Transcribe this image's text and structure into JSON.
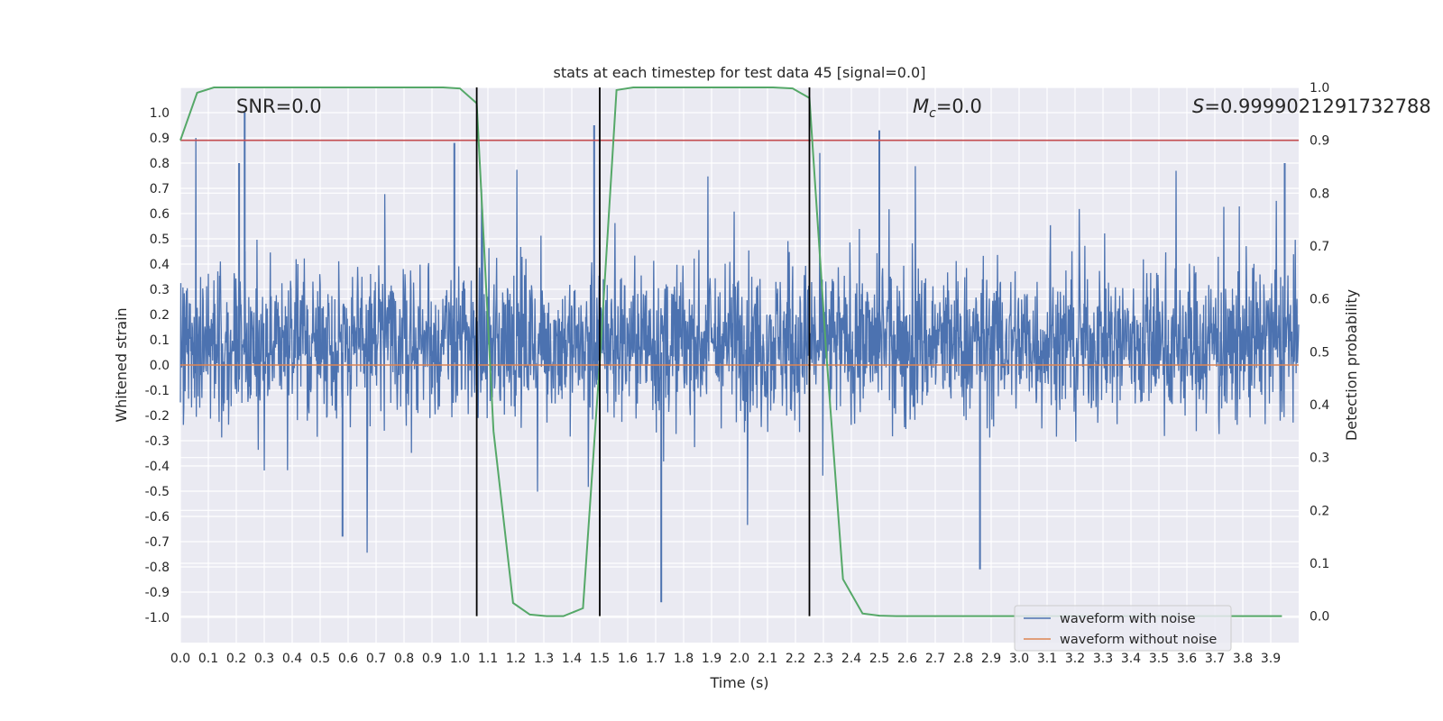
{
  "chart_data": {
    "type": "line",
    "title": "stats at each timestep for test data 45 [signal=0.0]",
    "xlabel": "Time (s)",
    "ylabel": "Whitened strain",
    "y2label": "Detection probability",
    "xlim": [
      0.0,
      4.0
    ],
    "ylim": [
      -1.1,
      1.1
    ],
    "y2lim": [
      -0.05,
      1.0
    ],
    "x_ticks": [
      0.0,
      0.1,
      0.2,
      0.3,
      0.4,
      0.5,
      0.6,
      0.7,
      0.8,
      0.9,
      1.0,
      1.1,
      1.2,
      1.3,
      1.4,
      1.5,
      1.6,
      1.7,
      1.8,
      1.9,
      2.0,
      2.1,
      2.2,
      2.3,
      2.4,
      2.5,
      2.6,
      2.7,
      2.8,
      2.9,
      3.0,
      3.1,
      3.2,
      3.3,
      3.4,
      3.5,
      3.6,
      3.7,
      3.8,
      3.9
    ],
    "y_ticks": [
      1.0,
      0.9,
      0.8,
      0.7,
      0.6,
      0.5,
      0.4,
      0.3,
      0.2,
      0.1,
      0.0,
      -0.1,
      -0.2,
      -0.3,
      -0.4,
      -0.5,
      -0.6,
      -0.7,
      -0.8,
      -0.9,
      -1.0
    ],
    "y2_ticks": [
      0.0,
      0.1,
      0.2,
      0.3,
      0.4,
      0.5,
      0.6,
      0.7,
      0.8,
      0.9,
      1.0
    ],
    "grid": true,
    "legend_position": "lower-right",
    "annotations": {
      "snr": "SNR=0.0",
      "mc_symbol": "M",
      "mc_sub": "c",
      "mc_value": "=0.0",
      "s_symbol": "S",
      "s_value": "=0.9999021291732788"
    },
    "series": [
      {
        "name": "waveform with noise",
        "color": "#4c72b0",
        "axis": "left",
        "note_shape": "dense noise band roughly within [-0.8, 1.0], spikes near 0.23 s (1.0), 1.48 s (0.95), 2.5 s (0.93), 3.95 s (0.8)",
        "spikes": [
          [
            0.23,
            1.0
          ],
          [
            0.21,
            0.8
          ],
          [
            0.98,
            0.88
          ],
          [
            1.48,
            0.95
          ],
          [
            2.5,
            0.93
          ],
          [
            3.95,
            0.8
          ],
          [
            1.72,
            -0.94
          ],
          [
            2.86,
            -0.81
          ],
          [
            1.5,
            -0.72
          ],
          [
            0.58,
            -0.68
          ]
        ]
      },
      {
        "name": "waveform without noise",
        "color": "#dd8452",
        "axis": "left",
        "x": [
          0.0,
          4.0
        ],
        "y": [
          0.0,
          0.0
        ]
      },
      {
        "name": "detection probability",
        "color": "#55a868",
        "axis": "right",
        "x": [
          0.0,
          0.06,
          0.12,
          0.19,
          0.25,
          0.31,
          0.37,
          0.44,
          0.5,
          0.56,
          0.62,
          0.69,
          0.75,
          0.81,
          0.87,
          0.94,
          1.0,
          1.06,
          1.12,
          1.19,
          1.25,
          1.31,
          1.37,
          1.44,
          1.5,
          1.56,
          1.62,
          1.69,
          1.75,
          1.81,
          1.87,
          1.94,
          2.0,
          2.06,
          2.12,
          2.19,
          2.25,
          2.31,
          2.37,
          2.44,
          2.5,
          2.56,
          2.62,
          2.69,
          2.75,
          2.81,
          2.87,
          2.94,
          3.0,
          3.06,
          3.12,
          3.19,
          3.25,
          3.31,
          3.37,
          3.44,
          3.5,
          3.56,
          3.62,
          3.69,
          3.75,
          3.81,
          3.87,
          3.94
        ],
        "y": [
          0.9,
          0.99,
          1.0,
          1.0,
          1.0,
          1.0,
          1.0,
          1.0,
          1.0,
          1.0,
          1.0,
          1.0,
          1.0,
          1.0,
          1.0,
          1.0,
          0.998,
          0.97,
          0.35,
          0.025,
          0.003,
          0.0,
          0.0,
          0.015,
          0.48,
          0.995,
          1.0,
          1.0,
          1.0,
          1.0,
          1.0,
          1.0,
          1.0,
          1.0,
          1.0,
          0.998,
          0.98,
          0.5,
          0.07,
          0.005,
          0.001,
          0.0,
          0.0,
          0.0,
          0.0,
          0.0,
          0.0,
          0.0,
          0.0,
          0.0,
          0.0,
          0.0,
          0.0,
          0.0,
          0.0,
          0.0,
          0.0,
          0.0,
          0.0,
          0.0,
          0.0,
          0.0,
          0.0,
          0.0
        ]
      },
      {
        "name": "threshold",
        "color": "#c44e52",
        "axis": "right",
        "y": 0.9
      }
    ],
    "vlines": {
      "color": "#000000",
      "x": [
        1.06,
        1.5,
        2.25
      ],
      "y_range_right": [
        0.0,
        1.0
      ]
    }
  }
}
